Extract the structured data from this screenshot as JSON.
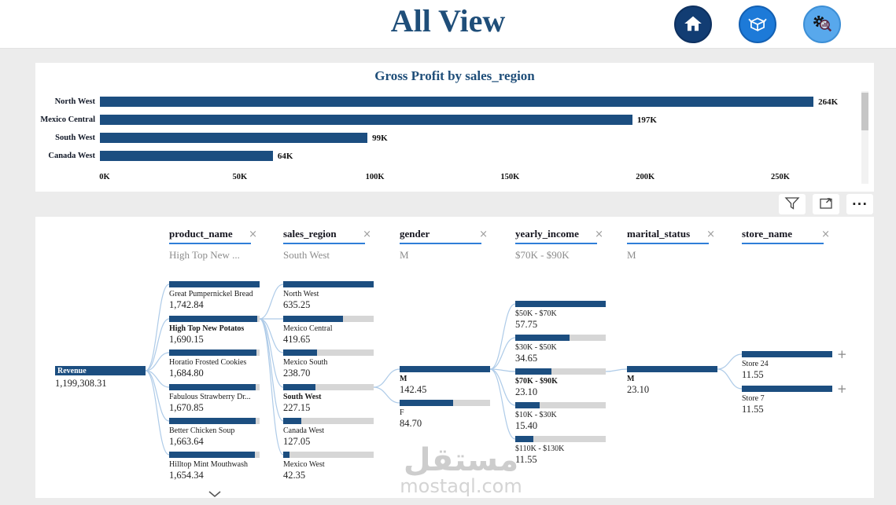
{
  "header": {
    "title": "All View"
  },
  "colors": {
    "bar": "#1C4E80",
    "accent": "#2F7ED8",
    "title": "#1F4E79",
    "connector": "#AECBE8"
  },
  "chart_data": {
    "type": "bar",
    "orientation": "horizontal",
    "title": "Gross Profit by sales_region",
    "categories": [
      "North West",
      "Mexico Central",
      "South West",
      "Canada West"
    ],
    "values": [
      264,
      197,
      99,
      64
    ],
    "value_labels": [
      "264K",
      "197K",
      "99K",
      "64K"
    ],
    "x_ticks": [
      "0K",
      "50K",
      "100K",
      "150K",
      "200K",
      "250K"
    ],
    "xlabel": "",
    "ylabel": "sales_region",
    "xlim_k": [
      0,
      250
    ],
    "grid": false,
    "legend": "none"
  },
  "toolbar": {
    "more_label": "···"
  },
  "tree": {
    "root": {
      "label": "Revenue",
      "value": "1,199,308.31"
    },
    "columns": [
      {
        "field": "product_name",
        "selected_value": "High Top New ...",
        "has_more": true,
        "nodes": [
          {
            "label": "Great Pumpernickel Bread",
            "value": "1,742.84"
          },
          {
            "label": "High Top New Potatos",
            "value": "1,690.15",
            "selected": true
          },
          {
            "label": "Horatio Frosted Cookies",
            "value": "1,684.80"
          },
          {
            "label": "Fabulous Strawberry Dr...",
            "value": "1,670.85"
          },
          {
            "label": "Better Chicken Soup",
            "value": "1,663.64"
          },
          {
            "label": "Hilltop Mint Mouthwash",
            "value": "1,654.34"
          }
        ]
      },
      {
        "field": "sales_region",
        "selected_value": "South West",
        "nodes": [
          {
            "label": "North West",
            "value": "635.25"
          },
          {
            "label": "Mexico Central",
            "value": "419.65"
          },
          {
            "label": "Mexico South",
            "value": "238.70"
          },
          {
            "label": "South West",
            "value": "227.15",
            "selected": true
          },
          {
            "label": "Canada West",
            "value": "127.05"
          },
          {
            "label": "Mexico West",
            "value": "42.35"
          }
        ]
      },
      {
        "field": "gender",
        "selected_value": "M",
        "nodes": [
          {
            "label": "M",
            "value": "142.45",
            "selected": true
          },
          {
            "label": "F",
            "value": "84.70"
          }
        ]
      },
      {
        "field": "yearly_income",
        "selected_value": "$70K - $90K",
        "nodes": [
          {
            "label": "$50K - $70K",
            "value": "57.75"
          },
          {
            "label": "$30K - $50K",
            "value": "34.65"
          },
          {
            "label": "$70K - $90K",
            "value": "23.10",
            "selected": true
          },
          {
            "label": "$10K - $30K",
            "value": "15.40"
          },
          {
            "label": "$110K - $130K",
            "value": "11.55"
          }
        ]
      },
      {
        "field": "marital_status",
        "selected_value": "M",
        "nodes": [
          {
            "label": "M",
            "value": "23.10",
            "selected": true
          }
        ]
      },
      {
        "field": "store_name",
        "selected_value": "",
        "nodes": [
          {
            "label": "Store 24",
            "value": "11.55",
            "expandable": true
          },
          {
            "label": "Store 7",
            "value": "11.55",
            "expandable": true
          }
        ]
      }
    ]
  },
  "watermark": {
    "arabic": "مستقل",
    "latin": "mostaql.com"
  }
}
